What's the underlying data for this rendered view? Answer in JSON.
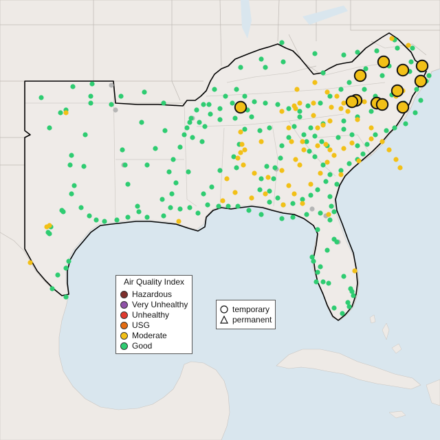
{
  "legend": {
    "title": "Air Quality Index",
    "categories": [
      {
        "label": "Hazardous",
        "color": "#7e2f2c"
      },
      {
        "label": "Very Unhealthy",
        "color": "#8f52a8"
      },
      {
        "label": "Unhealthy",
        "color": "#e03a2f"
      },
      {
        "label": "USG",
        "color": "#e46c12"
      },
      {
        "label": "Moderate",
        "color": "#f2c017"
      },
      {
        "label": "Good",
        "color": "#2ecc71"
      }
    ]
  },
  "monitor_legend": {
    "temporary": "temporary",
    "permanent": "permanent"
  },
  "colors": {
    "water": "#d9e6ee",
    "land": "#eeeae6",
    "highlight_region": "#f1efec",
    "good": "#2ecc71",
    "moderate": "#f2c017",
    "gray_station": "#b5b5b5",
    "region_outline": "#000000"
  },
  "station_counts": {
    "good": 212,
    "moderate": 74,
    "moderate_large": 14
  }
}
